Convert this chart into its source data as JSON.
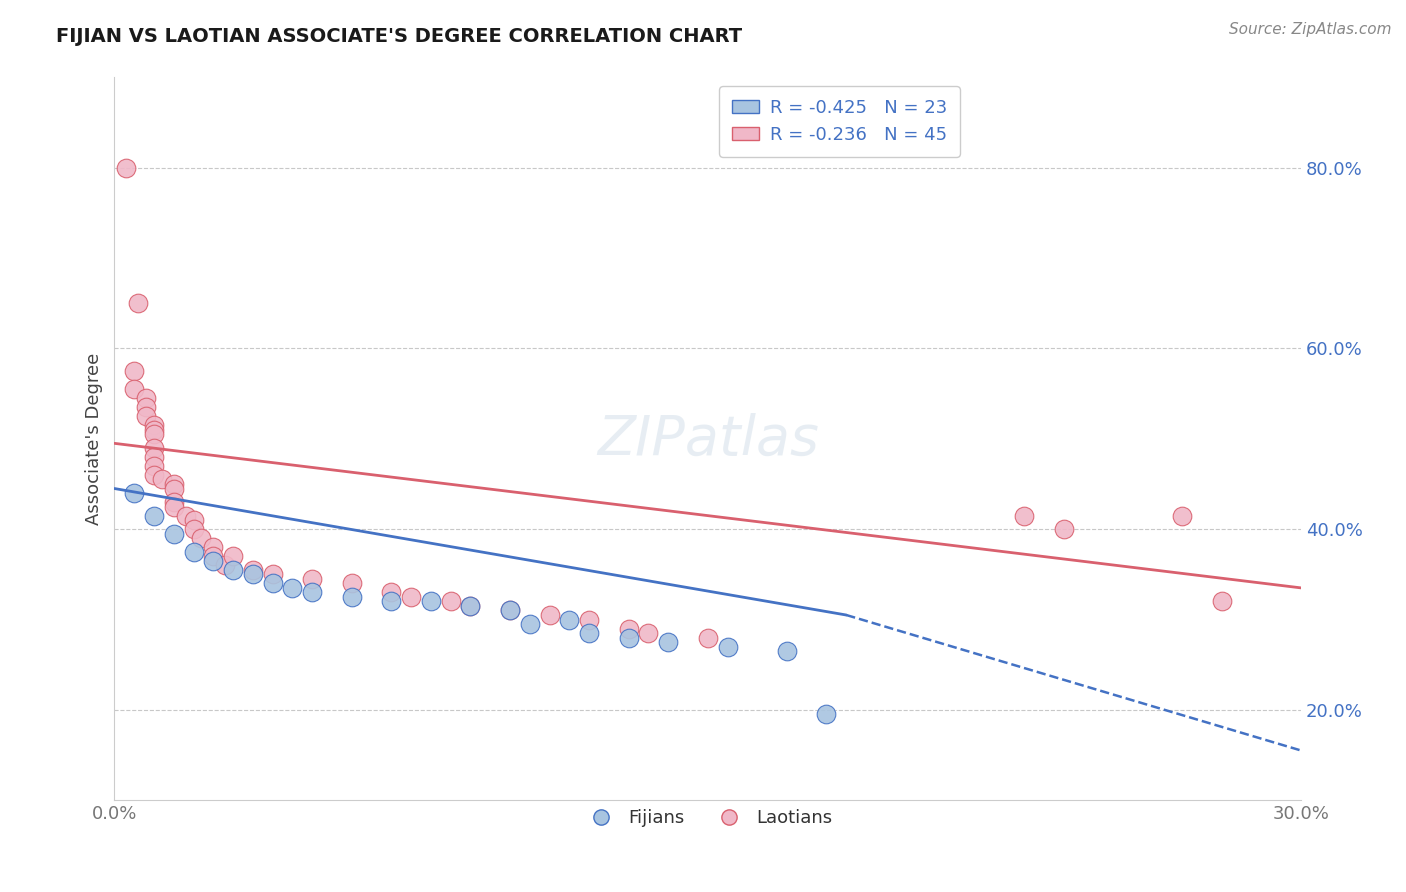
{
  "title": "FIJIAN VS LAOTIAN ASSOCIATE'S DEGREE CORRELATION CHART",
  "source_text": "Source: ZipAtlas.com",
  "ylabel": "Associate's Degree",
  "xlim": [
    0.0,
    0.3
  ],
  "ylim": [
    0.1,
    0.9
  ],
  "yticks": [
    0.2,
    0.4,
    0.6,
    0.8
  ],
  "ytick_labels": [
    "20.0%",
    "40.0%",
    "60.0%",
    "80.0%"
  ],
  "fijian_color": "#a8c4e0",
  "laotian_color": "#f0b8c8",
  "fijian_line_color": "#4472c4",
  "laotian_line_color": "#d9606e",
  "legend_label_1": "R = -0.425   N = 23",
  "legend_label_2": "R = -0.236   N = 45",
  "legend_labels_bottom": [
    "Fijians",
    "Laotians"
  ],
  "background_color": "#ffffff",
  "grid_color": "#c8c8c8",
  "fijian_scatter": [
    [
      0.005,
      0.44
    ],
    [
      0.01,
      0.415
    ],
    [
      0.015,
      0.395
    ],
    [
      0.02,
      0.375
    ],
    [
      0.025,
      0.365
    ],
    [
      0.03,
      0.355
    ],
    [
      0.035,
      0.35
    ],
    [
      0.04,
      0.34
    ],
    [
      0.045,
      0.335
    ],
    [
      0.05,
      0.33
    ],
    [
      0.06,
      0.325
    ],
    [
      0.07,
      0.32
    ],
    [
      0.08,
      0.32
    ],
    [
      0.09,
      0.315
    ],
    [
      0.1,
      0.31
    ],
    [
      0.105,
      0.295
    ],
    [
      0.115,
      0.3
    ],
    [
      0.12,
      0.285
    ],
    [
      0.13,
      0.28
    ],
    [
      0.14,
      0.275
    ],
    [
      0.155,
      0.27
    ],
    [
      0.17,
      0.265
    ],
    [
      0.18,
      0.195
    ]
  ],
  "laotian_scatter": [
    [
      0.003,
      0.8
    ],
    [
      0.006,
      0.65
    ],
    [
      0.005,
      0.575
    ],
    [
      0.005,
      0.555
    ],
    [
      0.008,
      0.545
    ],
    [
      0.008,
      0.535
    ],
    [
      0.008,
      0.525
    ],
    [
      0.01,
      0.515
    ],
    [
      0.01,
      0.51
    ],
    [
      0.01,
      0.505
    ],
    [
      0.01,
      0.49
    ],
    [
      0.01,
      0.48
    ],
    [
      0.01,
      0.47
    ],
    [
      0.01,
      0.46
    ],
    [
      0.012,
      0.455
    ],
    [
      0.015,
      0.45
    ],
    [
      0.015,
      0.445
    ],
    [
      0.015,
      0.43
    ],
    [
      0.015,
      0.425
    ],
    [
      0.018,
      0.415
    ],
    [
      0.02,
      0.41
    ],
    [
      0.02,
      0.4
    ],
    [
      0.022,
      0.39
    ],
    [
      0.025,
      0.38
    ],
    [
      0.025,
      0.37
    ],
    [
      0.028,
      0.36
    ],
    [
      0.03,
      0.37
    ],
    [
      0.035,
      0.355
    ],
    [
      0.04,
      0.35
    ],
    [
      0.05,
      0.345
    ],
    [
      0.06,
      0.34
    ],
    [
      0.07,
      0.33
    ],
    [
      0.075,
      0.325
    ],
    [
      0.085,
      0.32
    ],
    [
      0.09,
      0.315
    ],
    [
      0.1,
      0.31
    ],
    [
      0.11,
      0.305
    ],
    [
      0.12,
      0.3
    ],
    [
      0.13,
      0.29
    ],
    [
      0.135,
      0.285
    ],
    [
      0.15,
      0.28
    ],
    [
      0.23,
      0.415
    ],
    [
      0.24,
      0.4
    ],
    [
      0.27,
      0.415
    ],
    [
      0.28,
      0.32
    ]
  ],
  "fijian_line": {
    "x0": 0.0,
    "y0": 0.445,
    "x1": 0.185,
    "y1": 0.305,
    "x_dashed_end": 0.3,
    "y_dashed_end": 0.155
  },
  "laotian_line": {
    "x0": 0.0,
    "y0": 0.495,
    "x1": 0.3,
    "y1": 0.335
  }
}
